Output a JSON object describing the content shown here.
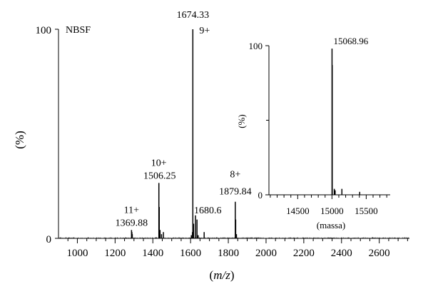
{
  "chart_data": [
    {
      "type": "line",
      "title": "",
      "xlabel": "(m/z)",
      "ylabel": "(%)",
      "xlim": [
        900,
        2760
      ],
      "ylim": [
        0,
        100
      ],
      "xticks": [
        1000,
        1200,
        1400,
        1600,
        1800,
        2000,
        2200,
        2400,
        2600
      ],
      "yticks": [
        0,
        100
      ],
      "grid": false,
      "legend": "none",
      "series_label": "NBSF",
      "peaks": [
        {
          "x": 1287,
          "y": 4
        },
        {
          "x": 1289,
          "y": 3
        },
        {
          "x": 1291,
          "y": 2
        },
        {
          "x": 1432,
          "y": 26.5
        },
        {
          "x": 1434,
          "y": 15
        },
        {
          "x": 1438,
          "y": 4
        },
        {
          "x": 1446,
          "y": 2
        },
        {
          "x": 1456,
          "y": 3
        },
        {
          "x": 1604,
          "y": 1.5
        },
        {
          "x": 1610,
          "y": 3
        },
        {
          "x": 1612,
          "y": 100
        },
        {
          "x": 1616,
          "y": 7
        },
        {
          "x": 1626,
          "y": 11
        },
        {
          "x": 1634,
          "y": 9
        },
        {
          "x": 1640,
          "y": 1.5
        },
        {
          "x": 1672,
          "y": 3
        },
        {
          "x": 1837,
          "y": 17.5
        },
        {
          "x": 1839,
          "y": 9
        },
        {
          "x": 1843,
          "y": 2
        }
      ],
      "annotations": [
        {
          "text": "1674.33",
          "x": 1612,
          "y": 100
        },
        {
          "text": "9+",
          "x": 1612,
          "y": 100
        },
        {
          "text": "10+",
          "x": 1432,
          "y": 26.5
        },
        {
          "text": "1506.25",
          "x": 1432,
          "y": 26.5
        },
        {
          "text": "11+",
          "x": 1287,
          "y": 4
        },
        {
          "text": "1369.88",
          "x": 1287,
          "y": 4
        },
        {
          "text": "1680.6",
          "x": 1626,
          "y": 11
        },
        {
          "text": "8+",
          "x": 1837,
          "y": 17.5
        },
        {
          "text": "1879.84",
          "x": 1837,
          "y": 17.5
        }
      ]
    },
    {
      "type": "line",
      "title": "",
      "xlabel": "(massa)",
      "ylabel": "(%)",
      "xlim": [
        14080,
        15850
      ],
      "ylim": [
        0,
        100
      ],
      "xticks": [
        14500,
        15000,
        15500
      ],
      "yticks": [
        0,
        100
      ],
      "grid": false,
      "legend": "none",
      "peaks": [
        {
          "x": 15001,
          "y": 98
        },
        {
          "x": 15004,
          "y": 87
        },
        {
          "x": 15034,
          "y": 4
        },
        {
          "x": 15046,
          "y": 3
        },
        {
          "x": 15145,
          "y": 4
        },
        {
          "x": 15405,
          "y": 2
        }
      ],
      "annotations": [
        {
          "text": "15068.96",
          "x": 15001,
          "y": 98
        }
      ]
    }
  ]
}
